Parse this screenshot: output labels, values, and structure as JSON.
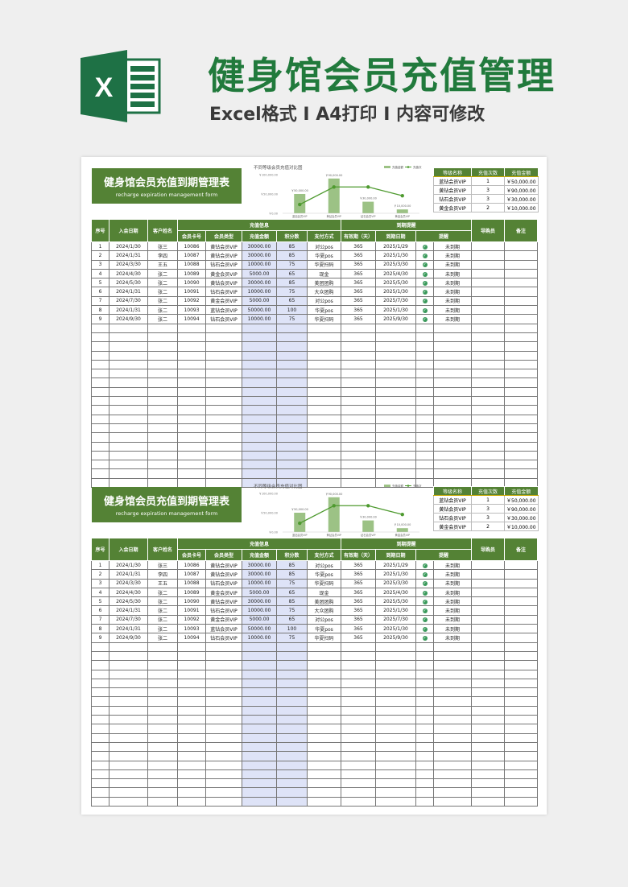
{
  "promo": {
    "title": "健身馆会员充值管理",
    "subtitle": "Excel格式 I A4打印 I 内容可修改",
    "logo_letter": "X"
  },
  "sheet": {
    "title": "健身馆会员充值到期管理表",
    "title_en": "recharge expiration management form",
    "headers": {
      "no": "序号",
      "join_date": "入会日期",
      "name": "客户姓名",
      "group_recharge": "充值信息",
      "card": "会员卡号",
      "type": "会员类型",
      "amount": "充值金额",
      "points": "积分数",
      "pay": "支付方式",
      "group_expire": "到期提醒",
      "valid": "有效期（天）",
      "due": "到期日期",
      "remind": "提醒",
      "guide": "导购员",
      "note": "备注"
    },
    "rows": [
      [
        "1",
        "2024/1/30",
        "张三",
        "10086",
        "黄钻会员VIP",
        "30000.00",
        "85",
        "对公pos",
        "365",
        "2025/1/29",
        "未到期"
      ],
      [
        "2",
        "2024/1/31",
        "李四",
        "10087",
        "黄钻会员VIP",
        "30000.00",
        "85",
        "华夏pos",
        "365",
        "2025/1/30",
        "未到期"
      ],
      [
        "3",
        "2024/3/30",
        "王五",
        "10088",
        "钻石会员VIP",
        "10000.00",
        "75",
        "华夏扫码",
        "365",
        "2025/3/30",
        "未到期"
      ],
      [
        "4",
        "2024/4/30",
        "张二",
        "10089",
        "黄金会员VIP",
        "5000.00",
        "65",
        "现金",
        "365",
        "2025/4/30",
        "未到期"
      ],
      [
        "5",
        "2024/5/30",
        "张二",
        "10090",
        "黄钻会员VIP",
        "30000.00",
        "85",
        "美团团购",
        "365",
        "2025/5/30",
        "未到期"
      ],
      [
        "6",
        "2024/1/31",
        "张二",
        "10091",
        "钻石会员VIP",
        "10000.00",
        "75",
        "大众团购",
        "365",
        "2025/1/30",
        "未到期"
      ],
      [
        "7",
        "2024/7/30",
        "张二",
        "10092",
        "黄金会员VIP",
        "5000.00",
        "65",
        "对公pos",
        "365",
        "2025/7/30",
        "未到期"
      ],
      [
        "8",
        "2024/1/31",
        "张二",
        "10093",
        "蓝钻会员VIP",
        "50000.00",
        "100",
        "华夏pos",
        "365",
        "2025/1/30",
        "未到期"
      ],
      [
        "9",
        "2024/9/30",
        "张二",
        "10094",
        "钻石会员VIP",
        "10000.00",
        "75",
        "华夏扫码",
        "365",
        "2025/9/30",
        "未到期"
      ]
    ],
    "summary": {
      "headers": [
        "等级名称",
        "充值次数",
        "充值金额"
      ],
      "rows": [
        [
          "蓝钻会员VIP",
          "1",
          "￥50,000.00"
        ],
        [
          "黄钻会员VIP",
          "3",
          "￥90,000.00"
        ],
        [
          "钻石会员VIP",
          "3",
          "￥30,000.00"
        ],
        [
          "黄金会员VIP",
          "2",
          "￥10,000.00"
        ]
      ]
    },
    "remind_icon": "check-circle-icon"
  },
  "colors": {
    "header_green": "#548235",
    "brand_green": "#217a3c",
    "amount_col": "#dee3f7"
  },
  "chart_data": {
    "type": "bar+line",
    "title": "不同等级会员充值对比图",
    "categories": [
      "蓝钻会员VIP",
      "黄钻会员VIP",
      "钻石会员VIP",
      "黄金会员VIP"
    ],
    "series": [
      {
        "name": "充值金额",
        "type": "bar",
        "values": [
          50000,
          90000,
          30000,
          10000
        ],
        "labels": [
          "￥50,000.00",
          "￥90,000.00",
          "￥30,000.00",
          "￥10,000.00"
        ]
      },
      {
        "name": "充值次",
        "type": "line",
        "axis": "secondary",
        "values": [
          1,
          3,
          3,
          2
        ]
      }
    ],
    "yticks": [
      "￥100,000.00",
      "￥50,000.00",
      "￥0.00"
    ],
    "ylim": [
      0,
      100000
    ],
    "legend": "top-right"
  }
}
